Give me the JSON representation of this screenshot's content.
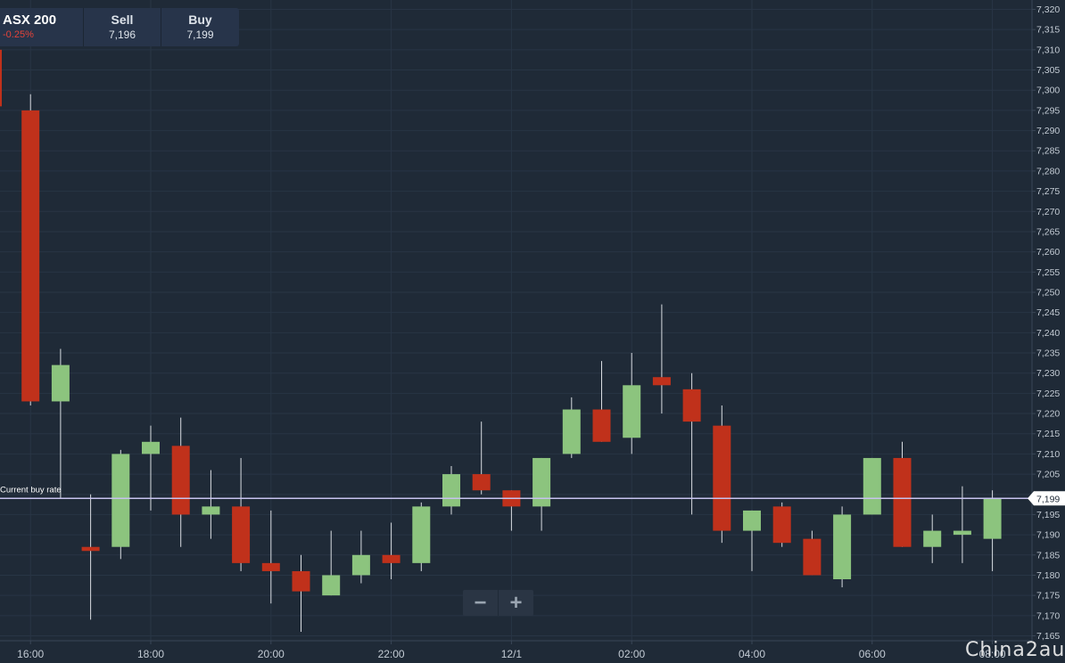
{
  "instrument": {
    "name": "ASX 200",
    "change": "-0.25%",
    "sell_label": "Sell",
    "sell_value": "7,196",
    "buy_label": "Buy",
    "buy_value": "7,199"
  },
  "current_rate": {
    "label": "Current buy rate",
    "value": 7199,
    "value_label": "7,199"
  },
  "zoom": {
    "minus": "−",
    "plus": "+"
  },
  "watermark": "China2au",
  "colors": {
    "background": "#1f2a37",
    "up": "#8cc47e",
    "down": "#c0311b",
    "grid": "#283545",
    "text": "#c3cbd4",
    "rate_line": "#c6c2ee"
  },
  "chart_data": {
    "type": "candlestick",
    "ylim": [
      7163,
      7322
    ],
    "y_ticks": [
      7165,
      7170,
      7175,
      7180,
      7185,
      7190,
      7195,
      7200,
      7205,
      7210,
      7215,
      7220,
      7225,
      7230,
      7235,
      7240,
      7245,
      7250,
      7255,
      7260,
      7265,
      7270,
      7275,
      7280,
      7285,
      7290,
      7295,
      7300,
      7305,
      7310,
      7315,
      7320
    ],
    "y_tick_labels": [
      "7,165",
      "7,170",
      "7,175",
      "7,180",
      "7,185",
      "7,190",
      "7,195",
      "7,200",
      "7,205",
      "7,210",
      "7,215",
      "7,220",
      "7,225",
      "7,230",
      "7,235",
      "7,240",
      "7,245",
      "7,250",
      "7,255",
      "7,260",
      "7,265",
      "7,270",
      "7,275",
      "7,280",
      "7,285",
      "7,290",
      "7,295",
      "7,300",
      "7,305",
      "7,310",
      "7,315",
      "7,320"
    ],
    "x_ticks": [
      {
        "label": "16:00",
        "index": 1
      },
      {
        "label": "18:00",
        "index": 5
      },
      {
        "label": "20:00",
        "index": 9
      },
      {
        "label": "22:00",
        "index": 13
      },
      {
        "label": "12/1",
        "index": 17
      },
      {
        "label": "02:00",
        "index": 21
      },
      {
        "label": "04:00",
        "index": 25
      },
      {
        "label": "06:00",
        "index": 29
      },
      {
        "label": "08:00",
        "index": 33
      }
    ],
    "candles": [
      {
        "o": 7310,
        "h": 7310,
        "l": 7296,
        "c": 7296,
        "partial": true
      },
      {
        "o": 7295,
        "h": 7299,
        "l": 7222,
        "c": 7223
      },
      {
        "o": 7223,
        "h": 7236,
        "l": 7199,
        "c": 7232
      },
      {
        "o": 7187,
        "h": 7200,
        "l": 7169,
        "c": 7186
      },
      {
        "o": 7187,
        "h": 7211,
        "l": 7184,
        "c": 7210
      },
      {
        "o": 7210,
        "h": 7217,
        "l": 7196,
        "c": 7213
      },
      {
        "o": 7212,
        "h": 7219,
        "l": 7187,
        "c": 7195
      },
      {
        "o": 7195,
        "h": 7206,
        "l": 7189,
        "c": 7197
      },
      {
        "o": 7197,
        "h": 7209,
        "l": 7181,
        "c": 7183
      },
      {
        "o": 7183,
        "h": 7196,
        "l": 7173,
        "c": 7181
      },
      {
        "o": 7181,
        "h": 7185,
        "l": 7166,
        "c": 7176
      },
      {
        "o": 7175,
        "h": 7191,
        "l": 7175,
        "c": 7180
      },
      {
        "o": 7180,
        "h": 7191,
        "l": 7178,
        "c": 7185
      },
      {
        "o": 7185,
        "h": 7193,
        "l": 7179,
        "c": 7183
      },
      {
        "o": 7183,
        "h": 7198,
        "l": 7181,
        "c": 7197
      },
      {
        "o": 7197,
        "h": 7207,
        "l": 7195,
        "c": 7205
      },
      {
        "o": 7205,
        "h": 7218,
        "l": 7200,
        "c": 7201
      },
      {
        "o": 7201,
        "h": 7201,
        "l": 7191,
        "c": 7197
      },
      {
        "o": 7197,
        "h": 7209,
        "l": 7191,
        "c": 7209
      },
      {
        "o": 7210,
        "h": 7224,
        "l": 7209,
        "c": 7221
      },
      {
        "o": 7221,
        "h": 7233,
        "l": 7213,
        "c": 7213
      },
      {
        "o": 7214,
        "h": 7235,
        "l": 7210,
        "c": 7227
      },
      {
        "o": 7229,
        "h": 7247,
        "l": 7220,
        "c": 7227
      },
      {
        "o": 7226,
        "h": 7230,
        "l": 7195,
        "c": 7218
      },
      {
        "o": 7217,
        "h": 7222,
        "l": 7188,
        "c": 7191
      },
      {
        "o": 7191,
        "h": 7196,
        "l": 7181,
        "c": 7196
      },
      {
        "o": 7197,
        "h": 7198,
        "l": 7187,
        "c": 7188
      },
      {
        "o": 7189,
        "h": 7191,
        "l": 7180,
        "c": 7180
      },
      {
        "o": 7179,
        "h": 7197,
        "l": 7177,
        "c": 7195
      },
      {
        "o": 7195,
        "h": 7209,
        "l": 7195,
        "c": 7209
      },
      {
        "o": 7209,
        "h": 7213,
        "l": 7187,
        "c": 7187
      },
      {
        "o": 7187,
        "h": 7195,
        "l": 7183,
        "c": 7191
      },
      {
        "o": 7190,
        "h": 7202,
        "l": 7183,
        "c": 7191
      },
      {
        "o": 7189,
        "h": 7201,
        "l": 7181,
        "c": 7199
      }
    ]
  }
}
